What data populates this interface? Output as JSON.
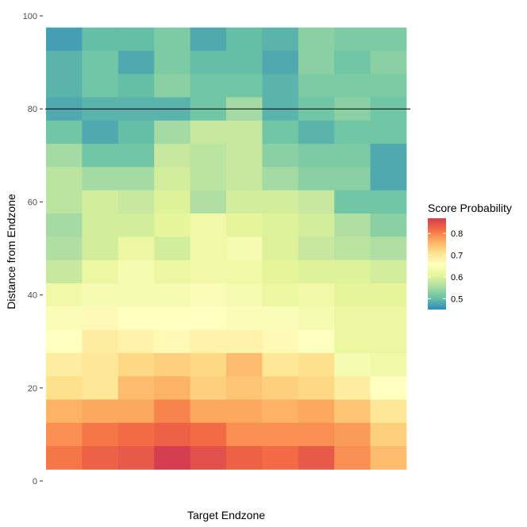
{
  "chart_data": {
    "type": "heatmap",
    "title": "",
    "xlabel": "Target Endzone",
    "ylabel": "Distance from Endzone",
    "x_tick_labels": [],
    "y_ticks": [
      0,
      20,
      40,
      60,
      80,
      100
    ],
    "ylim": [
      0,
      100
    ],
    "grid": false,
    "reference_line_y": 80,
    "legend": {
      "title": "Score Probability",
      "position": "right",
      "breaks": [
        0.5,
        0.6,
        0.7,
        0.8
      ],
      "break_labels": [
        "0.5",
        "0.6",
        "0.7",
        "0.8"
      ],
      "range": [
        0.45,
        0.87
      ],
      "palette": [
        "#3288BD",
        "#66C2A5",
        "#ABDDA4",
        "#E6F598",
        "#FFFFBF",
        "#FEE08B",
        "#FDAE61",
        "#F46D43",
        "#D53E4F"
      ]
    },
    "columns": 10,
    "row_centers": [
      95,
      90,
      85,
      80,
      75,
      70,
      65,
      60,
      55,
      50,
      45,
      40,
      35,
      30,
      25,
      20,
      15,
      10,
      5
    ],
    "row_height": 5,
    "values": [
      [
        0.47,
        0.5,
        0.5,
        0.52,
        0.48,
        0.5,
        0.49,
        0.53,
        0.52,
        0.52
      ],
      [
        0.49,
        0.51,
        0.48,
        0.52,
        0.5,
        0.5,
        0.48,
        0.53,
        0.51,
        0.53
      ],
      [
        0.49,
        0.51,
        0.5,
        0.53,
        0.51,
        0.51,
        0.49,
        0.52,
        0.52,
        0.52
      ],
      [
        0.48,
        0.49,
        0.49,
        0.49,
        0.51,
        0.55,
        0.49,
        0.51,
        0.53,
        0.51
      ],
      [
        0.51,
        0.48,
        0.5,
        0.55,
        0.58,
        0.58,
        0.51,
        0.49,
        0.51,
        0.51
      ],
      [
        0.55,
        0.51,
        0.51,
        0.58,
        0.57,
        0.58,
        0.53,
        0.52,
        0.52,
        0.48
      ],
      [
        0.57,
        0.55,
        0.55,
        0.59,
        0.57,
        0.58,
        0.55,
        0.53,
        0.53,
        0.48
      ],
      [
        0.57,
        0.59,
        0.58,
        0.6,
        0.56,
        0.59,
        0.59,
        0.58,
        0.51,
        0.51
      ],
      [
        0.55,
        0.59,
        0.59,
        0.61,
        0.63,
        0.61,
        0.6,
        0.59,
        0.56,
        0.53
      ],
      [
        0.56,
        0.59,
        0.62,
        0.59,
        0.63,
        0.64,
        0.6,
        0.58,
        0.57,
        0.56
      ],
      [
        0.58,
        0.62,
        0.64,
        0.62,
        0.63,
        0.63,
        0.61,
        0.6,
        0.6,
        0.59
      ],
      [
        0.63,
        0.64,
        0.64,
        0.64,
        0.65,
        0.64,
        0.62,
        0.63,
        0.61,
        0.61
      ],
      [
        0.65,
        0.67,
        0.66,
        0.66,
        0.66,
        0.65,
        0.65,
        0.64,
        0.62,
        0.62
      ],
      [
        0.66,
        0.69,
        0.68,
        0.67,
        0.68,
        0.68,
        0.67,
        0.66,
        0.62,
        0.62
      ],
      [
        0.69,
        0.7,
        0.72,
        0.73,
        0.72,
        0.75,
        0.7,
        0.71,
        0.64,
        0.63
      ],
      [
        0.71,
        0.7,
        0.75,
        0.76,
        0.73,
        0.74,
        0.73,
        0.72,
        0.69,
        0.66
      ],
      [
        0.76,
        0.77,
        0.77,
        0.8,
        0.77,
        0.77,
        0.76,
        0.77,
        0.74,
        0.7
      ],
      [
        0.79,
        0.81,
        0.82,
        0.83,
        0.82,
        0.79,
        0.79,
        0.79,
        0.78,
        0.73
      ],
      [
        0.81,
        0.83,
        0.84,
        0.87,
        0.85,
        0.83,
        0.82,
        0.84,
        0.79,
        0.75
      ]
    ]
  }
}
